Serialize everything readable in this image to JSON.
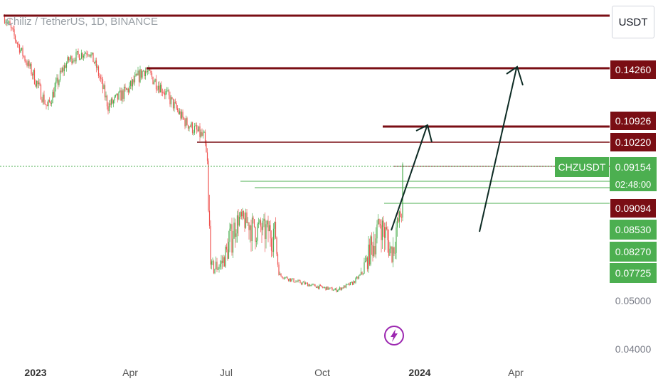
{
  "header": {
    "symbol_title": "Chiliz / TetherUS, 1D, BINANCE",
    "unit_label": "USDT"
  },
  "price_tag": {
    "symbol": "CHZUSDT",
    "price": "0.09154",
    "countdown": "02:48:00"
  },
  "price_labels": [
    {
      "text": "0.14260",
      "style": "red"
    },
    {
      "text": "0.10926",
      "style": "red"
    },
    {
      "text": "0.10220",
      "style": "red"
    },
    {
      "text": "0.09094",
      "style": "red"
    },
    {
      "text": "0.08530",
      "style": "green"
    },
    {
      "text": "0.08270",
      "style": "green"
    },
    {
      "text": "0.07725",
      "style": "green"
    },
    {
      "text": "0.05000",
      "style": "plain"
    },
    {
      "text": "0.04000",
      "style": "plain"
    }
  ],
  "x_labels": [
    {
      "text": "2023",
      "year": true
    },
    {
      "text": "Apr",
      "year": false
    },
    {
      "text": "Jul",
      "year": false
    },
    {
      "text": "Oct",
      "year": false
    },
    {
      "text": "2024",
      "year": true
    },
    {
      "text": "Apr",
      "year": false
    }
  ],
  "colors": {
    "up": "#4caf50",
    "down": "#ef5350",
    "resistance": "#7a0e14",
    "support": "#4caf50",
    "arrow": "#0d2b24"
  },
  "chart_data": {
    "type": "candlestick",
    "title": "Chiliz / TetherUS, 1D, BINANCE",
    "series": [
      {
        "name": "CHZUSDT",
        "x": [
          "2022-12-03",
          "2022-12-24",
          "2023-01-12",
          "2023-02-01",
          "2023-02-20",
          "2023-03-10",
          "2023-03-28",
          "2023-04-13",
          "2023-05-01",
          "2023-05-21",
          "2023-06-08",
          "2023-06-15",
          "2023-06-25",
          "2023-07-10",
          "2023-07-25",
          "2023-08-14",
          "2023-08-18",
          "2023-09-01",
          "2023-09-20",
          "2023-10-10",
          "2023-10-25",
          "2023-11-05",
          "2023-11-20",
          "2023-12-01",
          "2023-12-12"
        ],
        "close": [
          0.188,
          0.147,
          0.12,
          0.15,
          0.158,
          0.121,
          0.13,
          0.142,
          0.13,
          0.112,
          0.104,
          0.078,
          0.08,
          0.088,
          0.086,
          0.085,
          0.075,
          0.069,
          0.064,
          0.06,
          0.067,
          0.079,
          0.087,
          0.082,
          0.0915
        ]
      }
    ],
    "levels_resistance": [
      0.1426,
      0.10926,
      0.1022,
      0.09094
    ],
    "levels_support": [
      0.0853,
      0.0827,
      0.07725
    ],
    "current_price": 0.09154,
    "y_axis_ticks": [
      0.04,
      0.05,
      0.07725,
      0.0827,
      0.0853,
      0.09094,
      0.1022,
      0.10926,
      0.1426
    ],
    "y_unit": "USDT",
    "x_tick_labels": [
      "2023",
      "Apr",
      "Jul",
      "Oct",
      "2024",
      "Apr"
    ],
    "grid": false,
    "legend": "none"
  }
}
